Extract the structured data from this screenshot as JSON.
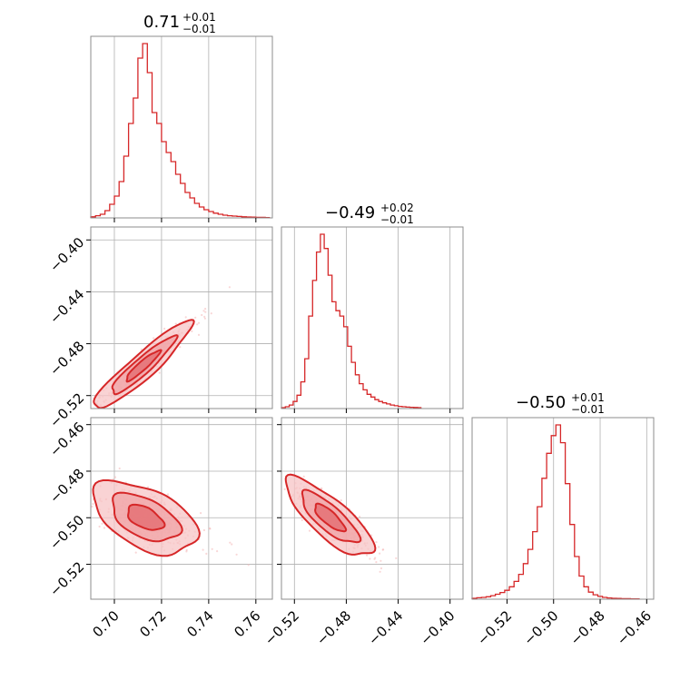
{
  "colors": {
    "accent": "#d62728",
    "fill_light": "#f7c4c5",
    "fill_mid": "#f0a3a5",
    "fill_dark": "#e36a6d",
    "frame": "#8c8c8c",
    "grid": "#b0b0b0"
  },
  "chart_data": [
    {
      "type": "histogram",
      "panel": "p1-hist",
      "title": {
        "main": "0.71",
        "upper": "+0.01",
        "lower": "−0.01"
      },
      "xlim": [
        0.69,
        0.767
      ],
      "xticks": [
        0.7,
        0.72,
        0.74,
        0.76
      ],
      "bins": [
        [
          0.69,
          0.6
        ],
        [
          0.692,
          1.2
        ],
        [
          0.694,
          2.0
        ],
        [
          0.696,
          4.0
        ],
        [
          0.698,
          7.5
        ],
        [
          0.7,
          12
        ],
        [
          0.702,
          20
        ],
        [
          0.704,
          34
        ],
        [
          0.706,
          52
        ],
        [
          0.708,
          66
        ],
        [
          0.71,
          88
        ],
        [
          0.712,
          96
        ],
        [
          0.714,
          80
        ],
        [
          0.716,
          58
        ],
        [
          0.718,
          52
        ],
        [
          0.72,
          42
        ],
        [
          0.722,
          36
        ],
        [
          0.724,
          31
        ],
        [
          0.726,
          24
        ],
        [
          0.728,
          19
        ],
        [
          0.73,
          14
        ],
        [
          0.732,
          11
        ],
        [
          0.734,
          8
        ],
        [
          0.736,
          6
        ],
        [
          0.738,
          4.5
        ],
        [
          0.74,
          3.5
        ],
        [
          0.742,
          2.6
        ],
        [
          0.744,
          2
        ],
        [
          0.746,
          1.5
        ],
        [
          0.748,
          1.2
        ],
        [
          0.75,
          1
        ],
        [
          0.752,
          0.8
        ],
        [
          0.754,
          0.6
        ],
        [
          0.756,
          0.5
        ],
        [
          0.758,
          0.4
        ],
        [
          0.76,
          0.3
        ],
        [
          0.762,
          0.3
        ],
        [
          0.764,
          0.2
        ]
      ]
    },
    {
      "type": "histogram",
      "panel": "p2-hist",
      "title": {
        "main": "−0.49",
        "upper": "+0.02",
        "lower": "−0.01"
      },
      "xlim": [
        -0.53,
        -0.39
      ],
      "xticks": [
        -0.52,
        -0.48,
        -0.44,
        -0.4
      ],
      "bins": [
        [
          -0.53,
          0.5
        ],
        [
          -0.527,
          1.0
        ],
        [
          -0.524,
          2.0
        ],
        [
          -0.521,
          4.0
        ],
        [
          -0.518,
          7.5
        ],
        [
          -0.515,
          15
        ],
        [
          -0.512,
          28
        ],
        [
          -0.509,
          52
        ],
        [
          -0.506,
          72
        ],
        [
          -0.503,
          88
        ],
        [
          -0.5,
          98
        ],
        [
          -0.497,
          90
        ],
        [
          -0.494,
          75
        ],
        [
          -0.491,
          60
        ],
        [
          -0.488,
          55
        ],
        [
          -0.485,
          52
        ],
        [
          -0.482,
          46
        ],
        [
          -0.479,
          35
        ],
        [
          -0.476,
          26
        ],
        [
          -0.473,
          19
        ],
        [
          -0.47,
          14
        ],
        [
          -0.467,
          10.5
        ],
        [
          -0.464,
          8
        ],
        [
          -0.461,
          6.5
        ],
        [
          -0.458,
          5
        ],
        [
          -0.455,
          4
        ],
        [
          -0.452,
          3.2
        ],
        [
          -0.449,
          2.6
        ],
        [
          -0.446,
          2
        ],
        [
          -0.443,
          1.6
        ],
        [
          -0.44,
          1.2
        ],
        [
          -0.437,
          1
        ],
        [
          -0.434,
          0.8
        ],
        [
          -0.431,
          0.7
        ],
        [
          -0.428,
          0.6
        ],
        [
          -0.425,
          0.5
        ]
      ]
    },
    {
      "type": "histogram",
      "panel": "p3-hist",
      "title": {
        "main": "−0.50",
        "upper": "+0.01",
        "lower": "−0.01"
      },
      "xlim": [
        -0.535,
        -0.457
      ],
      "xticks": [
        -0.52,
        -0.5,
        -0.48,
        -0.46
      ],
      "bins": [
        [
          -0.535,
          0.5
        ],
        [
          -0.533,
          0.8
        ],
        [
          -0.531,
          1
        ],
        [
          -0.529,
          1.4
        ],
        [
          -0.527,
          2
        ],
        [
          -0.525,
          2.8
        ],
        [
          -0.523,
          3.8
        ],
        [
          -0.521,
          5
        ],
        [
          -0.519,
          7
        ],
        [
          -0.517,
          10
        ],
        [
          -0.515,
          14
        ],
        [
          -0.513,
          20
        ],
        [
          -0.511,
          28
        ],
        [
          -0.509,
          38
        ],
        [
          -0.507,
          52
        ],
        [
          -0.505,
          68
        ],
        [
          -0.503,
          82
        ],
        [
          -0.501,
          92
        ],
        [
          -0.499,
          98
        ],
        [
          -0.497,
          88
        ],
        [
          -0.495,
          65
        ],
        [
          -0.493,
          42
        ],
        [
          -0.491,
          24
        ],
        [
          -0.489,
          13
        ],
        [
          -0.487,
          7
        ],
        [
          -0.485,
          4
        ],
        [
          -0.483,
          2.5
        ],
        [
          -0.481,
          1.6
        ],
        [
          -0.479,
          1
        ],
        [
          -0.477,
          0.7
        ],
        [
          -0.475,
          0.5
        ],
        [
          -0.473,
          0.4
        ],
        [
          -0.471,
          0.3
        ],
        [
          -0.469,
          0.3
        ],
        [
          -0.467,
          0.2
        ],
        [
          -0.465,
          0.2
        ]
      ]
    },
    {
      "type": "scatter-contour",
      "panel": "p21",
      "xlim": [
        0.69,
        0.767
      ],
      "ylim": [
        -0.53,
        -0.39
      ],
      "yticks": [
        -0.4,
        -0.44,
        -0.48,
        -0.52
      ],
      "center": [
        0.712,
        -0.497
      ],
      "spread": [
        0.008,
        0.013
      ],
      "correlation": 0.93,
      "sigma_levels": [
        2.6,
        1.7,
        0.9
      ]
    },
    {
      "type": "scatter-contour",
      "panel": "p31",
      "xlim": [
        0.69,
        0.767
      ],
      "ylim": [
        -0.535,
        -0.457
      ],
      "yticks": [
        -0.46,
        -0.48,
        -0.5,
        -0.52
      ],
      "center": [
        0.713,
        -0.5
      ],
      "spread": [
        0.0085,
        0.006
      ],
      "correlation": -0.5,
      "sigma_levels": [
        2.6,
        1.7,
        0.9
      ]
    },
    {
      "type": "scatter-contour",
      "panel": "p32",
      "xlim": [
        -0.53,
        -0.39
      ],
      "ylim": [
        -0.535,
        -0.457
      ],
      "yticks": [
        -0.46,
        -0.48,
        -0.5,
        -0.52
      ],
      "center": [
        -0.493,
        -0.5
      ],
      "spread": [
        0.013,
        0.0065
      ],
      "correlation": -0.8,
      "sigma_levels": [
        2.6,
        1.7,
        0.9
      ]
    }
  ],
  "tick_labels": {
    "p1": [
      "0.70",
      "0.72",
      "0.74",
      "0.76"
    ],
    "p2": [
      "−0.52",
      "−0.48",
      "−0.44",
      "−0.40"
    ],
    "p3": [
      "−0.52",
      "−0.50",
      "−0.48",
      "−0.46"
    ],
    "row2_y": [
      "−0.40",
      "−0.44",
      "−0.48",
      "−0.52"
    ],
    "row3_y": [
      "−0.46",
      "−0.48",
      "−0.50",
      "−0.52"
    ]
  }
}
